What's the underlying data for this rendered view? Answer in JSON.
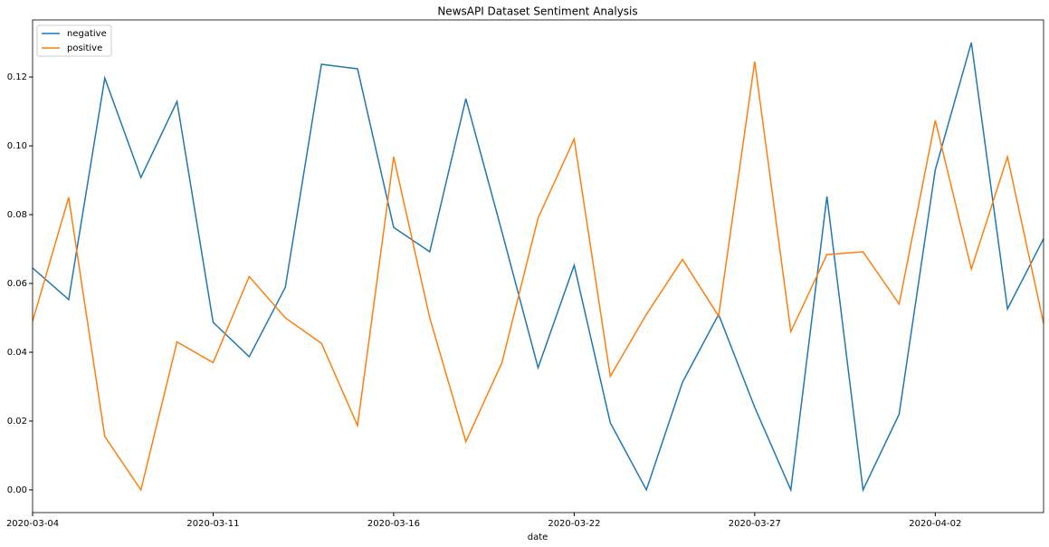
{
  "chart_data": {
    "type": "line",
    "title": "NewsAPI Dataset Sentiment Analysis",
    "x_label": "date",
    "categories": [
      "2020-03-04",
      null,
      null,
      null,
      null,
      "2020-03-11",
      null,
      null,
      null,
      null,
      "2020-03-16",
      null,
      null,
      null,
      null,
      "2020-03-22",
      null,
      null,
      null,
      null,
      "2020-03-27",
      null,
      null,
      null,
      null,
      "2020-04-02",
      null,
      null,
      null
    ],
    "series": [
      {
        "name": "negative",
        "color": "#1f77b4",
        "values": [
          0.0645,
          0.0553,
          0.1197,
          0.0908,
          0.1129,
          0.0487,
          0.0387,
          0.0589,
          0.1237,
          0.1224,
          0.0763,
          0.0692,
          0.1137,
          0.075,
          0.0355,
          0.0653,
          0.0195,
          0,
          0.0313,
          0.051,
          0.024,
          0,
          0.0853,
          0,
          0.022,
          0.093,
          0.13,
          0.0526,
          0.073
        ]
      },
      {
        "name": "positive",
        "color": "#ff7f0e",
        "values": [
          0.049,
          0.085,
          0.0155,
          0,
          0.043,
          0.037,
          0.062,
          0.05,
          0.0426,
          0.0187,
          0.0968,
          0.05,
          0.014,
          0.037,
          0.079,
          0.102,
          0.033,
          0.051,
          0.067,
          0.0505,
          0.1245,
          0.046,
          0.0684,
          0.0692,
          0.054,
          0.1074,
          0.0642,
          0.0968,
          0.0484
        ]
      }
    ],
    "ylim": [
      -0.0066,
      0.1366
    ],
    "yticks": [
      {
        "value": 0,
        "label": "0.00"
      },
      {
        "value": 0.02,
        "label": "0.02"
      },
      {
        "value": 0.04,
        "label": "0.04"
      },
      {
        "value": 0.06,
        "label": "0.06"
      },
      {
        "value": 0.08,
        "label": "0.08"
      },
      {
        "value": 0.1,
        "label": "0.10"
      },
      {
        "value": 0.12,
        "label": "0.12"
      }
    ],
    "legend": "upper left"
  }
}
